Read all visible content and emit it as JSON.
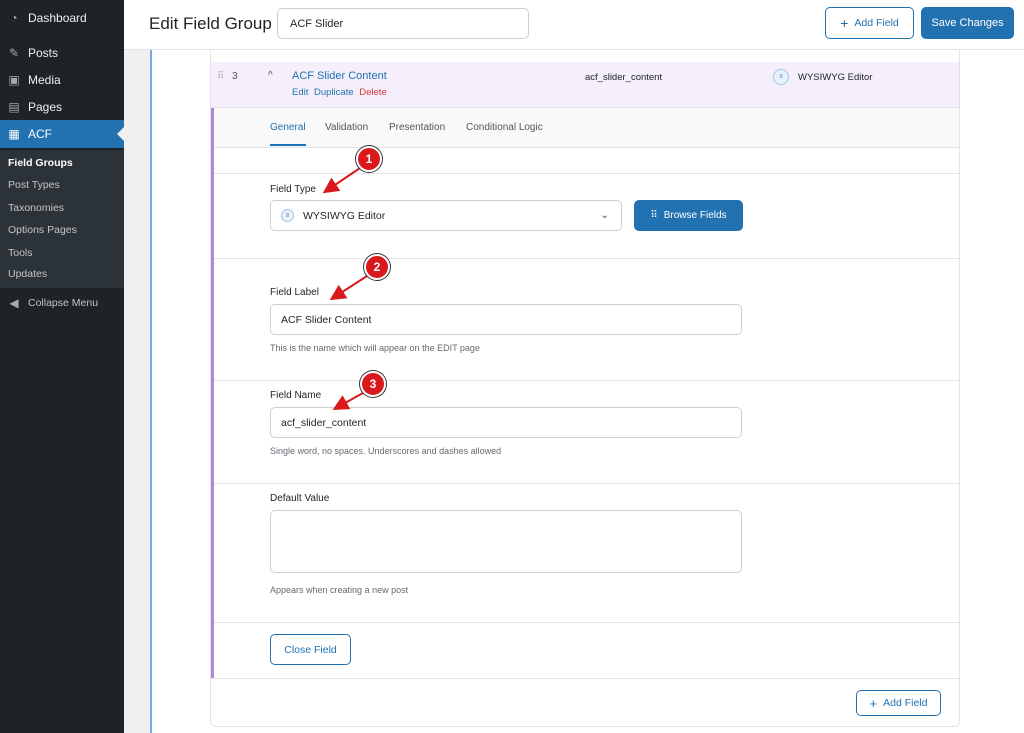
{
  "sidebar": {
    "items": [
      {
        "label": "Dashboard",
        "icon": "dashboard-icon"
      },
      {
        "label": "Posts",
        "icon": "pin-icon"
      },
      {
        "label": "Media",
        "icon": "media-icon"
      },
      {
        "label": "Pages",
        "icon": "pages-icon"
      },
      {
        "label": "ACF",
        "icon": "acf-icon"
      }
    ],
    "submenu": [
      "Field Groups",
      "Post Types",
      "Taxonomies",
      "Options Pages",
      "Tools",
      "Updates"
    ],
    "collapse": "Collapse Menu"
  },
  "header": {
    "title": "Edit Field Group",
    "group_name": "ACF Slider",
    "add_field": "Add Field",
    "save": "Save Changes"
  },
  "field_row": {
    "order": "3",
    "label": "ACF Slider Content",
    "actions": {
      "edit": "Edit",
      "duplicate": "Duplicate",
      "delete": "Delete"
    },
    "name": "acf_slider_content",
    "type": "WYSIWYG Editor"
  },
  "tabs": [
    "General",
    "Validation",
    "Presentation",
    "Conditional Logic"
  ],
  "settings": {
    "field_type": {
      "label": "Field Type",
      "value": "WYSIWYG Editor",
      "browse": "Browse Fields"
    },
    "field_label": {
      "label": "Field Label",
      "value": "ACF Slider Content",
      "help": "This is the name which will appear on the EDIT page"
    },
    "field_name": {
      "label": "Field Name",
      "value": "acf_slider_content",
      "help": "Single word, no spaces. Underscores and dashes allowed"
    },
    "default_value": {
      "label": "Default Value",
      "value": "",
      "help": "Appears when creating a new post"
    },
    "close": "Close Field"
  },
  "footer": {
    "add_field": "Add Field"
  },
  "annotations": [
    "1",
    "2",
    "3"
  ],
  "colors": {
    "accent": "#2271b1",
    "delete": "#d63638",
    "annotation": "#d9191c",
    "sidebar": "#1d2327"
  }
}
